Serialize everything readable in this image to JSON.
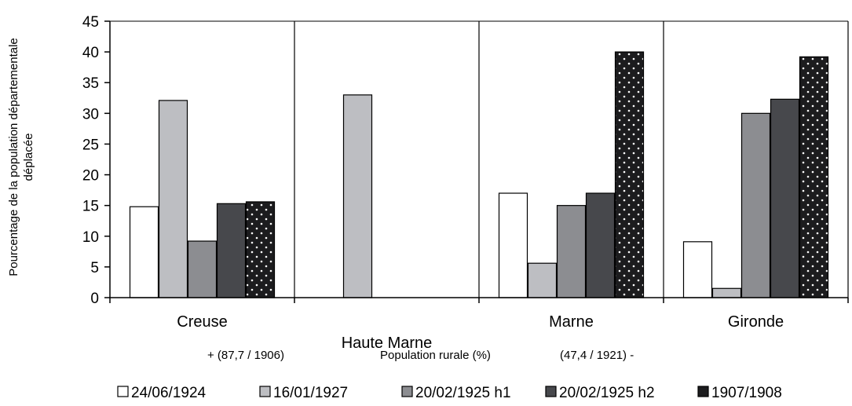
{
  "chart_data": {
    "type": "bar",
    "ylabel": "Pourcentage de la population départementale déplacée",
    "ylim": [
      0,
      45
    ],
    "yticks": [
      0,
      5,
      10,
      15,
      20,
      25,
      30,
      35,
      40,
      45
    ],
    "grid": "vertical separators between departments",
    "legend_position": "bottom",
    "categories": [
      "Creuse",
      "Haute Marne",
      "Marne",
      "Gironde"
    ],
    "series": [
      {
        "name": "24/06/1924",
        "color": "#ffffff",
        "pattern": "none",
        "values": [
          14.8,
          null,
          17.0,
          9.1
        ]
      },
      {
        "name": "16/01/1927",
        "color": "#bdbec2",
        "pattern": "none",
        "values": [
          32.1,
          33.0,
          5.6,
          1.5
        ]
      },
      {
        "name": "20/02/1925 h1",
        "color": "#8c8d91",
        "pattern": "none",
        "values": [
          9.2,
          null,
          15.0,
          30.0
        ]
      },
      {
        "name": "20/02/1925 h2",
        "color": "#47484c",
        "pattern": "none",
        "values": [
          15.3,
          null,
          17.0,
          32.3
        ]
      },
      {
        "name": "1907/1908",
        "color": "#1c1c1e",
        "pattern": "dots",
        "values": [
          15.6,
          null,
          40.0,
          39.2
        ]
      }
    ],
    "annotations": {
      "left": "+   (87,7 / 1906)",
      "center": "Population rurale (%)",
      "right": "(47,4 / 1921) -"
    }
  }
}
